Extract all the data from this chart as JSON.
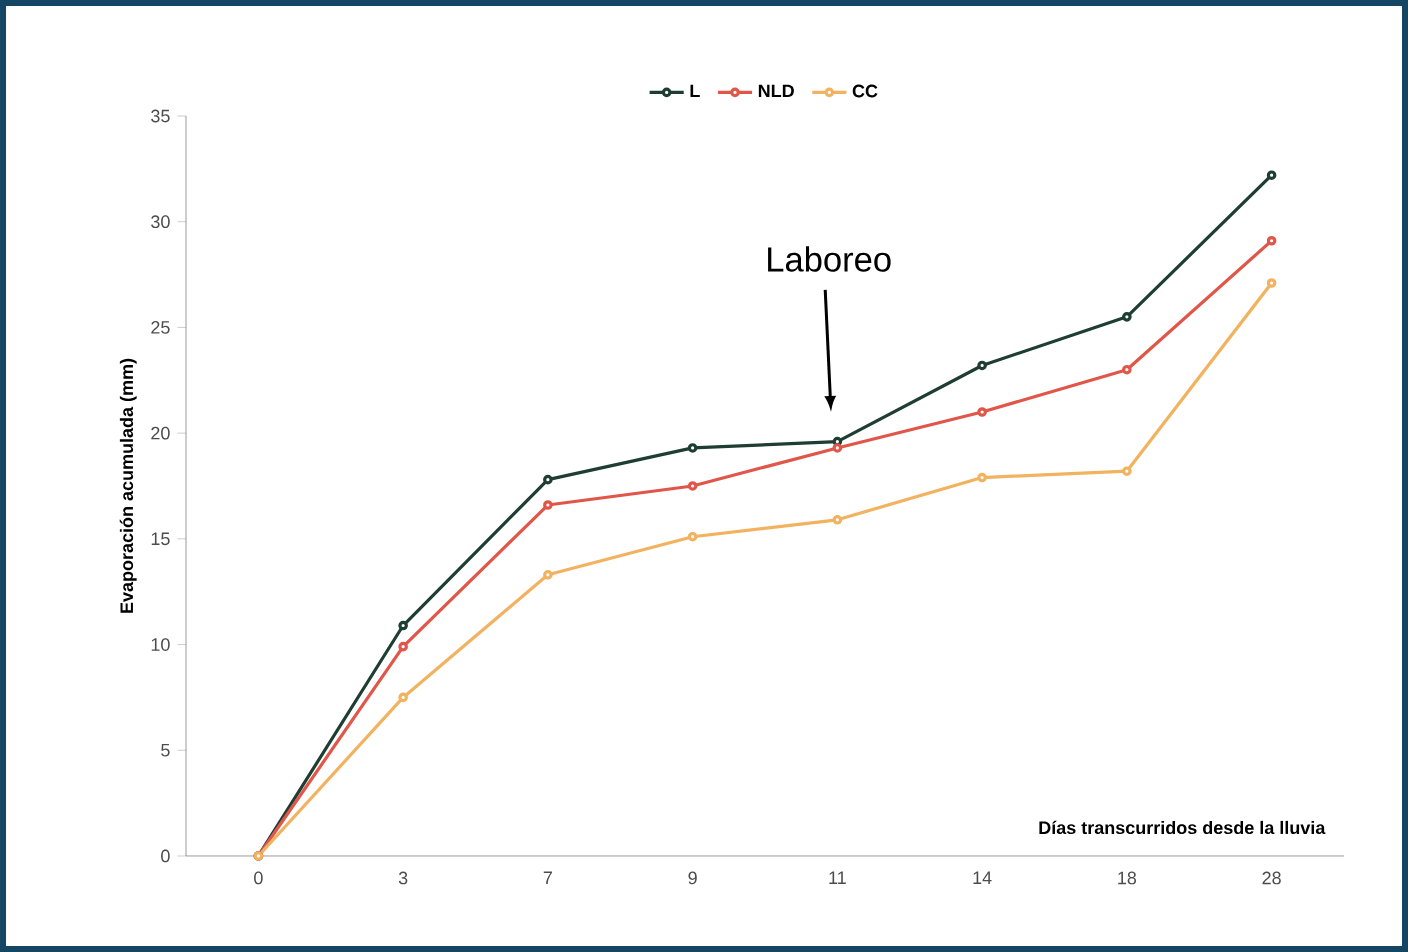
{
  "chart_data": {
    "type": "line",
    "categories": [
      "0",
      "3",
      "7",
      "9",
      "11",
      "14",
      "18",
      "28"
    ],
    "series": [
      {
        "name": "L",
        "color": "#1e3d33",
        "values": [
          0,
          10.9,
          17.8,
          19.3,
          19.6,
          23.2,
          25.5,
          32.2
        ]
      },
      {
        "name": "NLD",
        "color": "#e0574a",
        "values": [
          0,
          9.9,
          16.6,
          17.5,
          19.3,
          21.0,
          23.0,
          29.1
        ]
      },
      {
        "name": "CC",
        "color": "#f2b25f",
        "values": [
          0,
          7.5,
          13.3,
          15.1,
          15.9,
          17.9,
          18.2,
          27.1
        ]
      }
    ],
    "xlabel": "Días transcurridos desde la lluvia",
    "ylabel": "Evaporación acumulada (mm)",
    "ylim": [
      0,
      35
    ],
    "yticks": [
      0,
      5,
      10,
      15,
      20,
      25,
      30,
      35
    ],
    "annotations": [
      "Laboreo"
    ],
    "legend": "top",
    "marker": "circle",
    "line_style": "solid",
    "grid": false
  }
}
